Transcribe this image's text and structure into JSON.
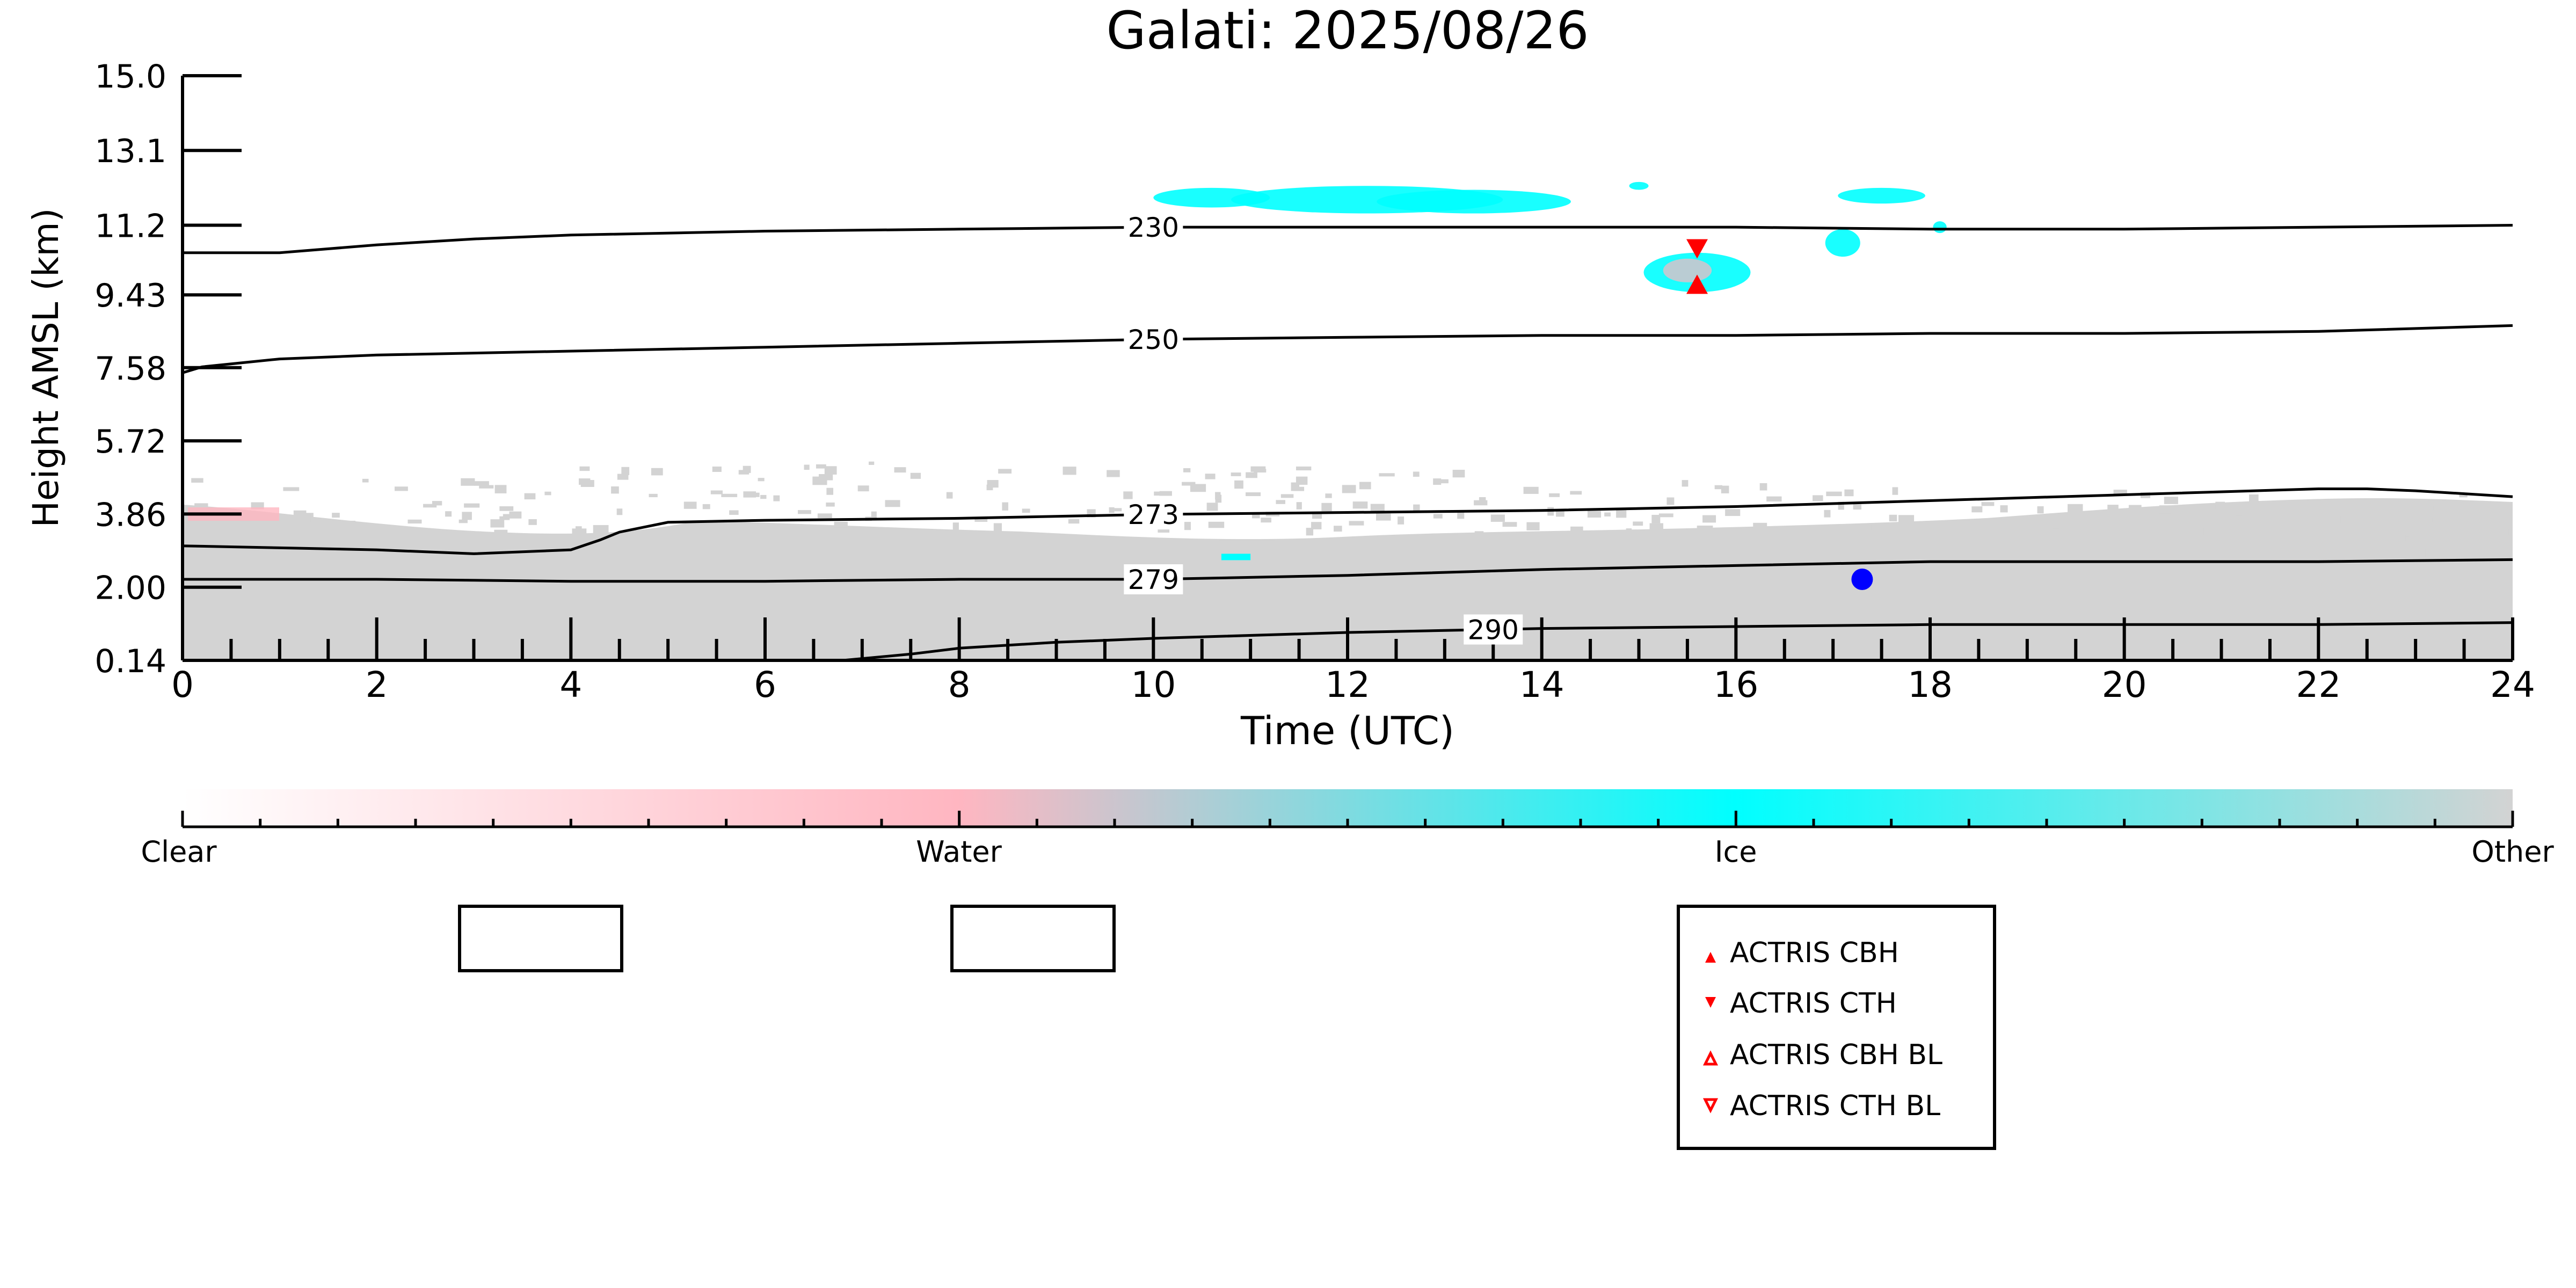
{
  "chart_data": {
    "type": "heatmap",
    "title": "Galati: 2025/08/26",
    "xlabel": "Time (UTC)",
    "ylabel": "Height AMSL (km)",
    "xlim": [
      0,
      24
    ],
    "x_ticks": [
      "0",
      "2",
      "4",
      "6",
      "8",
      "10",
      "12",
      "14",
      "16",
      "18",
      "20",
      "22",
      "24"
    ],
    "y_ticks": [
      "0.14",
      "2.00",
      "3.86",
      "5.72",
      "7.58",
      "9.43",
      "11.2",
      "13.1",
      "15.0"
    ],
    "ylim": [
      0.14,
      15.0
    ],
    "colormap": {
      "labels": [
        "Clear",
        "Water",
        "Ice",
        "Other"
      ],
      "colors": [
        "#ffffff",
        "#ffb6c1",
        "#00ffff",
        "#d3d3d3"
      ]
    },
    "temperature_contours": [
      {
        "label": "230",
        "x": [
          0,
          1,
          2,
          3,
          4,
          6,
          8,
          10,
          12,
          14,
          16,
          18,
          20,
          22,
          24
        ],
        "y": [
          10.5,
          10.5,
          10.7,
          10.85,
          10.95,
          11.05,
          11.1,
          11.15,
          11.15,
          11.15,
          11.15,
          11.1,
          11.1,
          11.15,
          11.2
        ]
      },
      {
        "label": "250",
        "x": [
          0,
          0.2,
          1,
          2,
          4,
          6,
          8,
          10,
          12,
          14,
          16,
          18,
          20,
          22,
          24
        ],
        "y": [
          7.45,
          7.6,
          7.8,
          7.9,
          8.0,
          8.1,
          8.2,
          8.3,
          8.35,
          8.4,
          8.4,
          8.45,
          8.45,
          8.5,
          8.65
        ]
      },
      {
        "label": "273",
        "x": [
          0,
          1,
          2,
          3,
          4,
          4.3,
          4.5,
          5,
          6,
          8,
          10,
          12,
          14,
          16,
          18,
          20,
          22,
          22.5,
          23,
          24
        ],
        "y": [
          3.05,
          3.0,
          2.95,
          2.85,
          2.95,
          3.2,
          3.4,
          3.65,
          3.7,
          3.75,
          3.85,
          3.9,
          3.95,
          4.05,
          4.2,
          4.35,
          4.5,
          4.5,
          4.45,
          4.3
        ]
      },
      {
        "label": "279",
        "x": [
          0,
          2,
          4,
          6,
          8,
          10,
          12,
          14,
          16,
          18,
          20,
          22,
          24
        ],
        "y": [
          2.2,
          2.2,
          2.15,
          2.15,
          2.2,
          2.2,
          2.3,
          2.45,
          2.55,
          2.65,
          2.65,
          2.65,
          2.7
        ]
      },
      {
        "label": "290",
        "x": [
          6.8,
          7.5,
          8,
          9,
          10,
          12,
          14,
          16,
          18,
          20,
          22,
          24
        ],
        "y": [
          0.14,
          0.3,
          0.45,
          0.6,
          0.7,
          0.85,
          0.95,
          1.0,
          1.05,
          1.05,
          1.05,
          1.1
        ]
      }
    ],
    "markers": [
      {
        "name": "ACTRIS CBH",
        "x": 15.6,
        "y": 9.7
      },
      {
        "name": "ACTRIS CTH",
        "x": 15.6,
        "y": 10.6
      },
      {
        "name": "rain/precip point",
        "x": 17.3,
        "y": 2.2
      }
    ],
    "legend": [
      "ACTRIS CBH",
      "ACTRIS CTH",
      "ACTRIS CBH BL",
      "ACTRIS CTH BL"
    ],
    "legend_colors": {
      "filled": "#ff0000",
      "outline": "#ff0000",
      "dot": "#0000ff"
    }
  }
}
